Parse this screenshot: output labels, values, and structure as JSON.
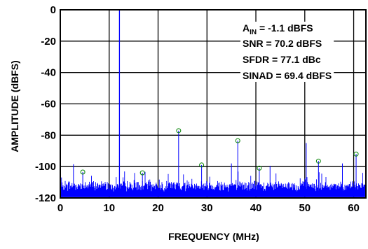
{
  "chart_data": {
    "type": "line",
    "title": "",
    "xlabel": "FREQUENCY (MHz)",
    "ylabel": "AMPLITUDE (dBFS)",
    "xlim": [
      0,
      62.5
    ],
    "ylim": [
      -120,
      0
    ],
    "x_ticks": [
      "0",
      "10",
      "20",
      "30",
      "40",
      "50",
      "60"
    ],
    "x_tick_values": [
      0,
      10,
      20,
      30,
      40,
      50,
      60
    ],
    "y_ticks": [
      "0",
      "-20",
      "-40",
      "-60",
      "-80",
      "-100",
      "-120"
    ],
    "y_tick_values": [
      0,
      -20,
      -40,
      -60,
      -80,
      -100,
      -120
    ],
    "grid": true,
    "noise_floor_dbfs": [
      -116,
      -102
    ],
    "fundamental": {
      "x": 12.1,
      "y": -1.1,
      "color": "#0000ff"
    },
    "spurs": [
      {
        "x": 2.7,
        "y": -98.5
      },
      {
        "x": 4.6,
        "y": -103.5
      },
      {
        "x": 16.8,
        "y": -104
      },
      {
        "x": 24.2,
        "y": -77.1
      },
      {
        "x": 28.9,
        "y": -99
      },
      {
        "x": 35.0,
        "y": -98
      },
      {
        "x": 36.3,
        "y": -83.5
      },
      {
        "x": 40.7,
        "y": -101
      },
      {
        "x": 42.9,
        "y": -99.5
      },
      {
        "x": 50.3,
        "y": -85
      },
      {
        "x": 52.8,
        "y": -96.5
      },
      {
        "x": 57.7,
        "y": -98
      },
      {
        "x": 60.5,
        "y": -92
      }
    ],
    "harmonic_markers": [
      {
        "x": 4.6,
        "y": -103.5
      },
      {
        "x": 16.8,
        "y": -104
      },
      {
        "x": 24.2,
        "y": -77.1
      },
      {
        "x": 28.9,
        "y": -99
      },
      {
        "x": 36.3,
        "y": -83.5
      },
      {
        "x": 40.7,
        "y": -101
      },
      {
        "x": 52.8,
        "y": -96.5
      },
      {
        "x": 60.5,
        "y": -92
      }
    ],
    "annotations": {
      "ain_main": "A",
      "ain_sub": "IN",
      "ain_value": " = -1.1 dBFS",
      "snr": "SNR = 70.2 dBFS",
      "sfdr": "SFDR = 77.1 dBc",
      "sinad": "SINAD = 69.4 dBFS"
    },
    "colors": {
      "trace": "#0000ff",
      "grid": "#000000",
      "marker": "#008000"
    }
  }
}
